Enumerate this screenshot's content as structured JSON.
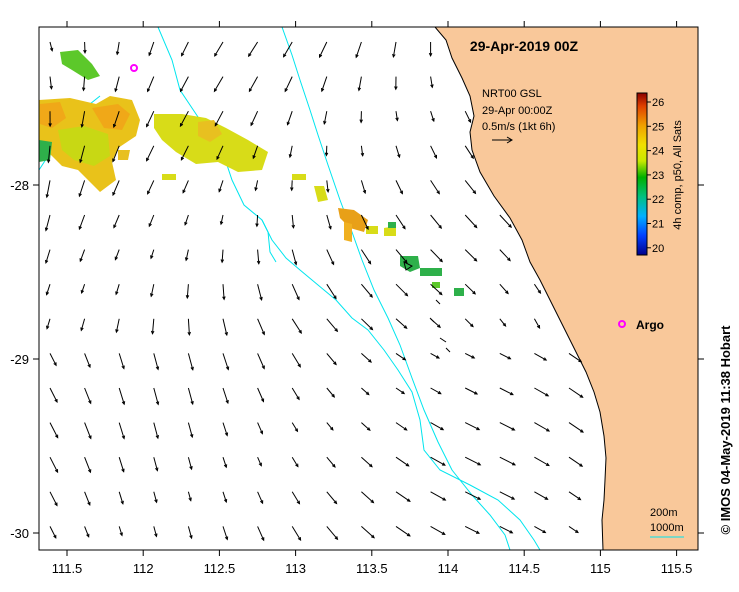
{
  "map": {
    "title": "29-Apr-2019 00Z",
    "x_ticks": [
      "111.5",
      "112",
      "112.5",
      "113",
      "113.5",
      "114",
      "114.5",
      "115",
      "115.5"
    ],
    "y_ticks": [
      "-28",
      "-29",
      "-30"
    ],
    "credit": "© IMOS 04-May-2019 11:38 Hobart",
    "colors": {
      "land": "#f9c89a",
      "isobath": "#00e5ee",
      "argo": "#ff00ff",
      "arrow": "#000000"
    }
  },
  "current_legend": {
    "line1": "NRT00 GSL",
    "line2": "29-Apr 00:00Z",
    "line3": "0.5m/s (1kt 6h)"
  },
  "colorbar": {
    "label": "4h comp, p50, All Sats",
    "ticks": [
      "26",
      "25",
      "24",
      "23",
      "22",
      "21",
      "20"
    ]
  },
  "isobath_legend": {
    "label1": "200m",
    "label2": "1000m"
  },
  "markers": {
    "argo_label": "Argo"
  }
}
